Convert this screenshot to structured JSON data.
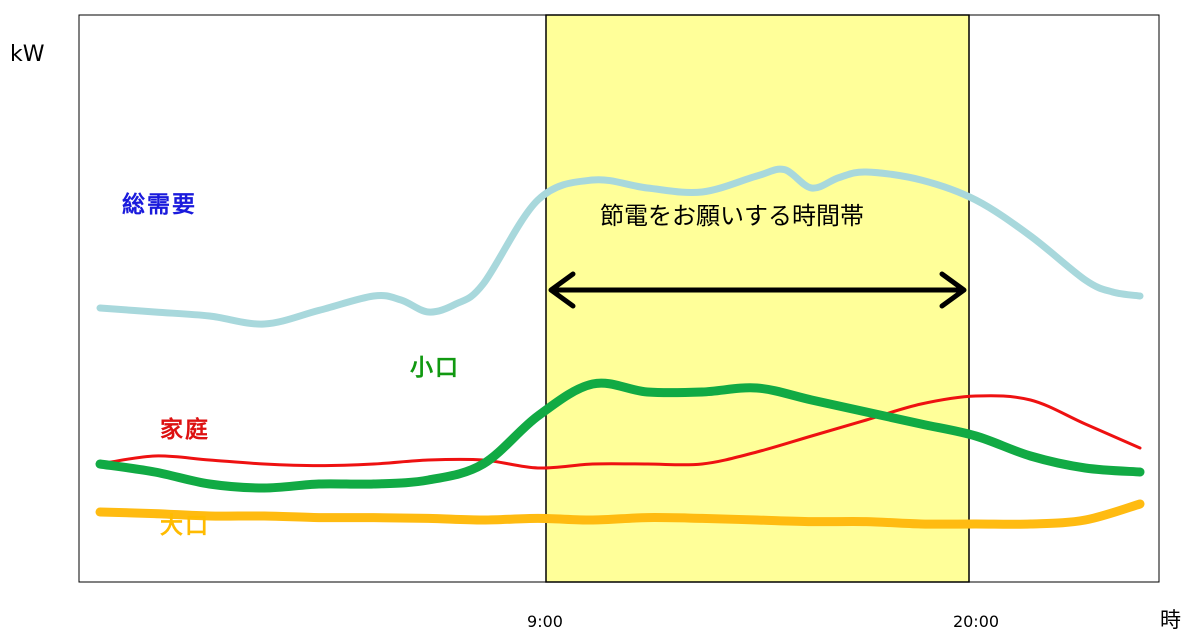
{
  "chart_data": {
    "type": "line",
    "ylabel": "kW",
    "x_unit_label": "時",
    "x_ticks": [
      "9:00",
      "20:00"
    ],
    "highlight_band": {
      "from": "9:00",
      "to": "20:00",
      "label": "節電をお願いする時間帯",
      "color": "#ffff99"
    },
    "y_ticks_shown": false,
    "grid": false,
    "series": [
      {
        "name": "総需要",
        "label_color": "#1a1adc",
        "color": "#a8d8dc",
        "x": [
          0,
          1,
          2,
          3,
          4,
          5,
          5.5,
          6,
          6.5,
          7,
          8,
          9,
          10,
          11,
          12,
          12.5,
          13,
          13.5,
          14,
          15,
          16,
          17,
          18,
          18.5,
          19
        ],
        "y": [
          2.35,
          2.4,
          2.45,
          2.55,
          2.38,
          2.2,
          2.25,
          2.4,
          2.3,
          2.05,
          1.0,
          0.75,
          0.85,
          0.9,
          0.7,
          0.62,
          0.85,
          0.72,
          0.65,
          0.75,
          1.0,
          1.45,
          2.0,
          2.15,
          2.2
        ]
      },
      {
        "name": "小口",
        "label_color": "#119911",
        "color": "#11aa44",
        "x": [
          0,
          1,
          2,
          3,
          4,
          5,
          6,
          7,
          8,
          9,
          10,
          11,
          12,
          13,
          14,
          15,
          16,
          17,
          18,
          19
        ],
        "y": [
          4.3,
          4.4,
          4.55,
          4.6,
          4.55,
          4.55,
          4.5,
          4.3,
          3.7,
          3.3,
          3.4,
          3.4,
          3.35,
          3.5,
          3.65,
          3.8,
          3.95,
          4.2,
          4.35,
          4.4
        ]
      },
      {
        "name": "家庭",
        "label_color": "#dd1111",
        "color": "#ee1111",
        "x": [
          0,
          1,
          2,
          3,
          4,
          5,
          6,
          7,
          8,
          9,
          10,
          11,
          12,
          13,
          14,
          15,
          16,
          17,
          18,
          19
        ],
        "y": [
          4.3,
          4.2,
          4.25,
          4.3,
          4.32,
          4.3,
          4.25,
          4.25,
          4.35,
          4.3,
          4.3,
          4.3,
          4.15,
          3.95,
          3.75,
          3.55,
          3.45,
          3.5,
          3.8,
          4.1
        ]
      },
      {
        "name": "大口",
        "label_color": "#ffbb00",
        "color": "#ffbb11",
        "x": [
          0,
          1,
          2,
          3,
          4,
          5,
          6,
          7,
          8,
          9,
          10,
          11,
          12,
          13,
          14,
          15,
          16,
          17,
          18,
          19
        ],
        "y": [
          4.9,
          4.92,
          4.95,
          4.95,
          4.97,
          4.97,
          4.98,
          5.0,
          4.98,
          5.0,
          4.97,
          4.98,
          5.0,
          5.02,
          5.02,
          5.05,
          5.05,
          5.05,
          5.0,
          4.8
        ]
      }
    ],
    "annotations": [
      {
        "type": "double-arrow",
        "from": "9:00",
        "to": "20:00"
      }
    ]
  }
}
